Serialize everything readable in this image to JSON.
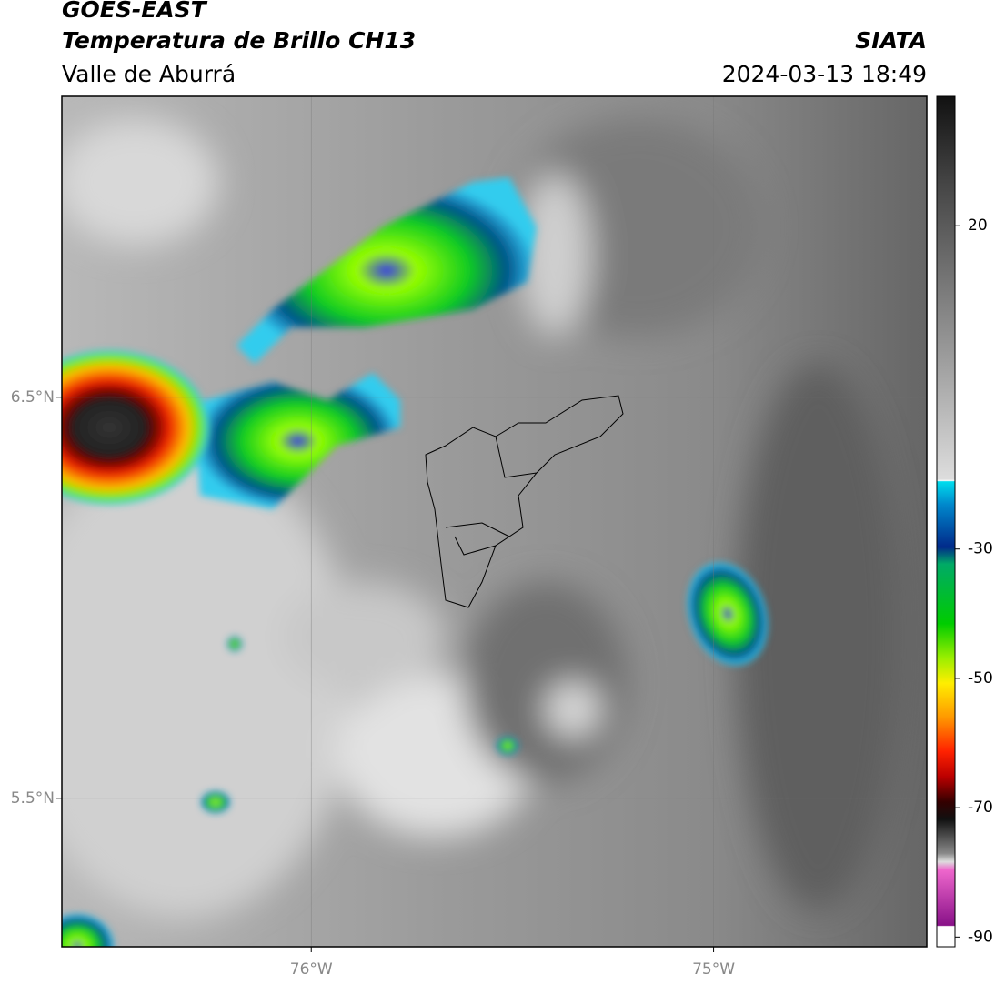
{
  "header": {
    "title": "GOES-EAST",
    "subtitle": "Temperatura de Brillo CH13",
    "region": "Valle de Aburrá",
    "source": "SIATA",
    "timestamp": "2024-03-13 18:49"
  },
  "map": {
    "xlim": [
      -76.62,
      -74.47
    ],
    "ylim": [
      5.13,
      7.25
    ],
    "xticks": [
      {
        "value": -76,
        "label": "76°W"
      },
      {
        "value": -75,
        "label": "75°W"
      }
    ],
    "yticks": [
      {
        "value": 6.5,
        "label": "6.5°N"
      },
      {
        "value": 5.5,
        "label": "5.5°N"
      }
    ]
  },
  "colorbar": {
    "lim": [
      -91.5,
      40
    ],
    "ticks": [
      20,
      -30,
      -50,
      -70,
      -90
    ]
  }
}
